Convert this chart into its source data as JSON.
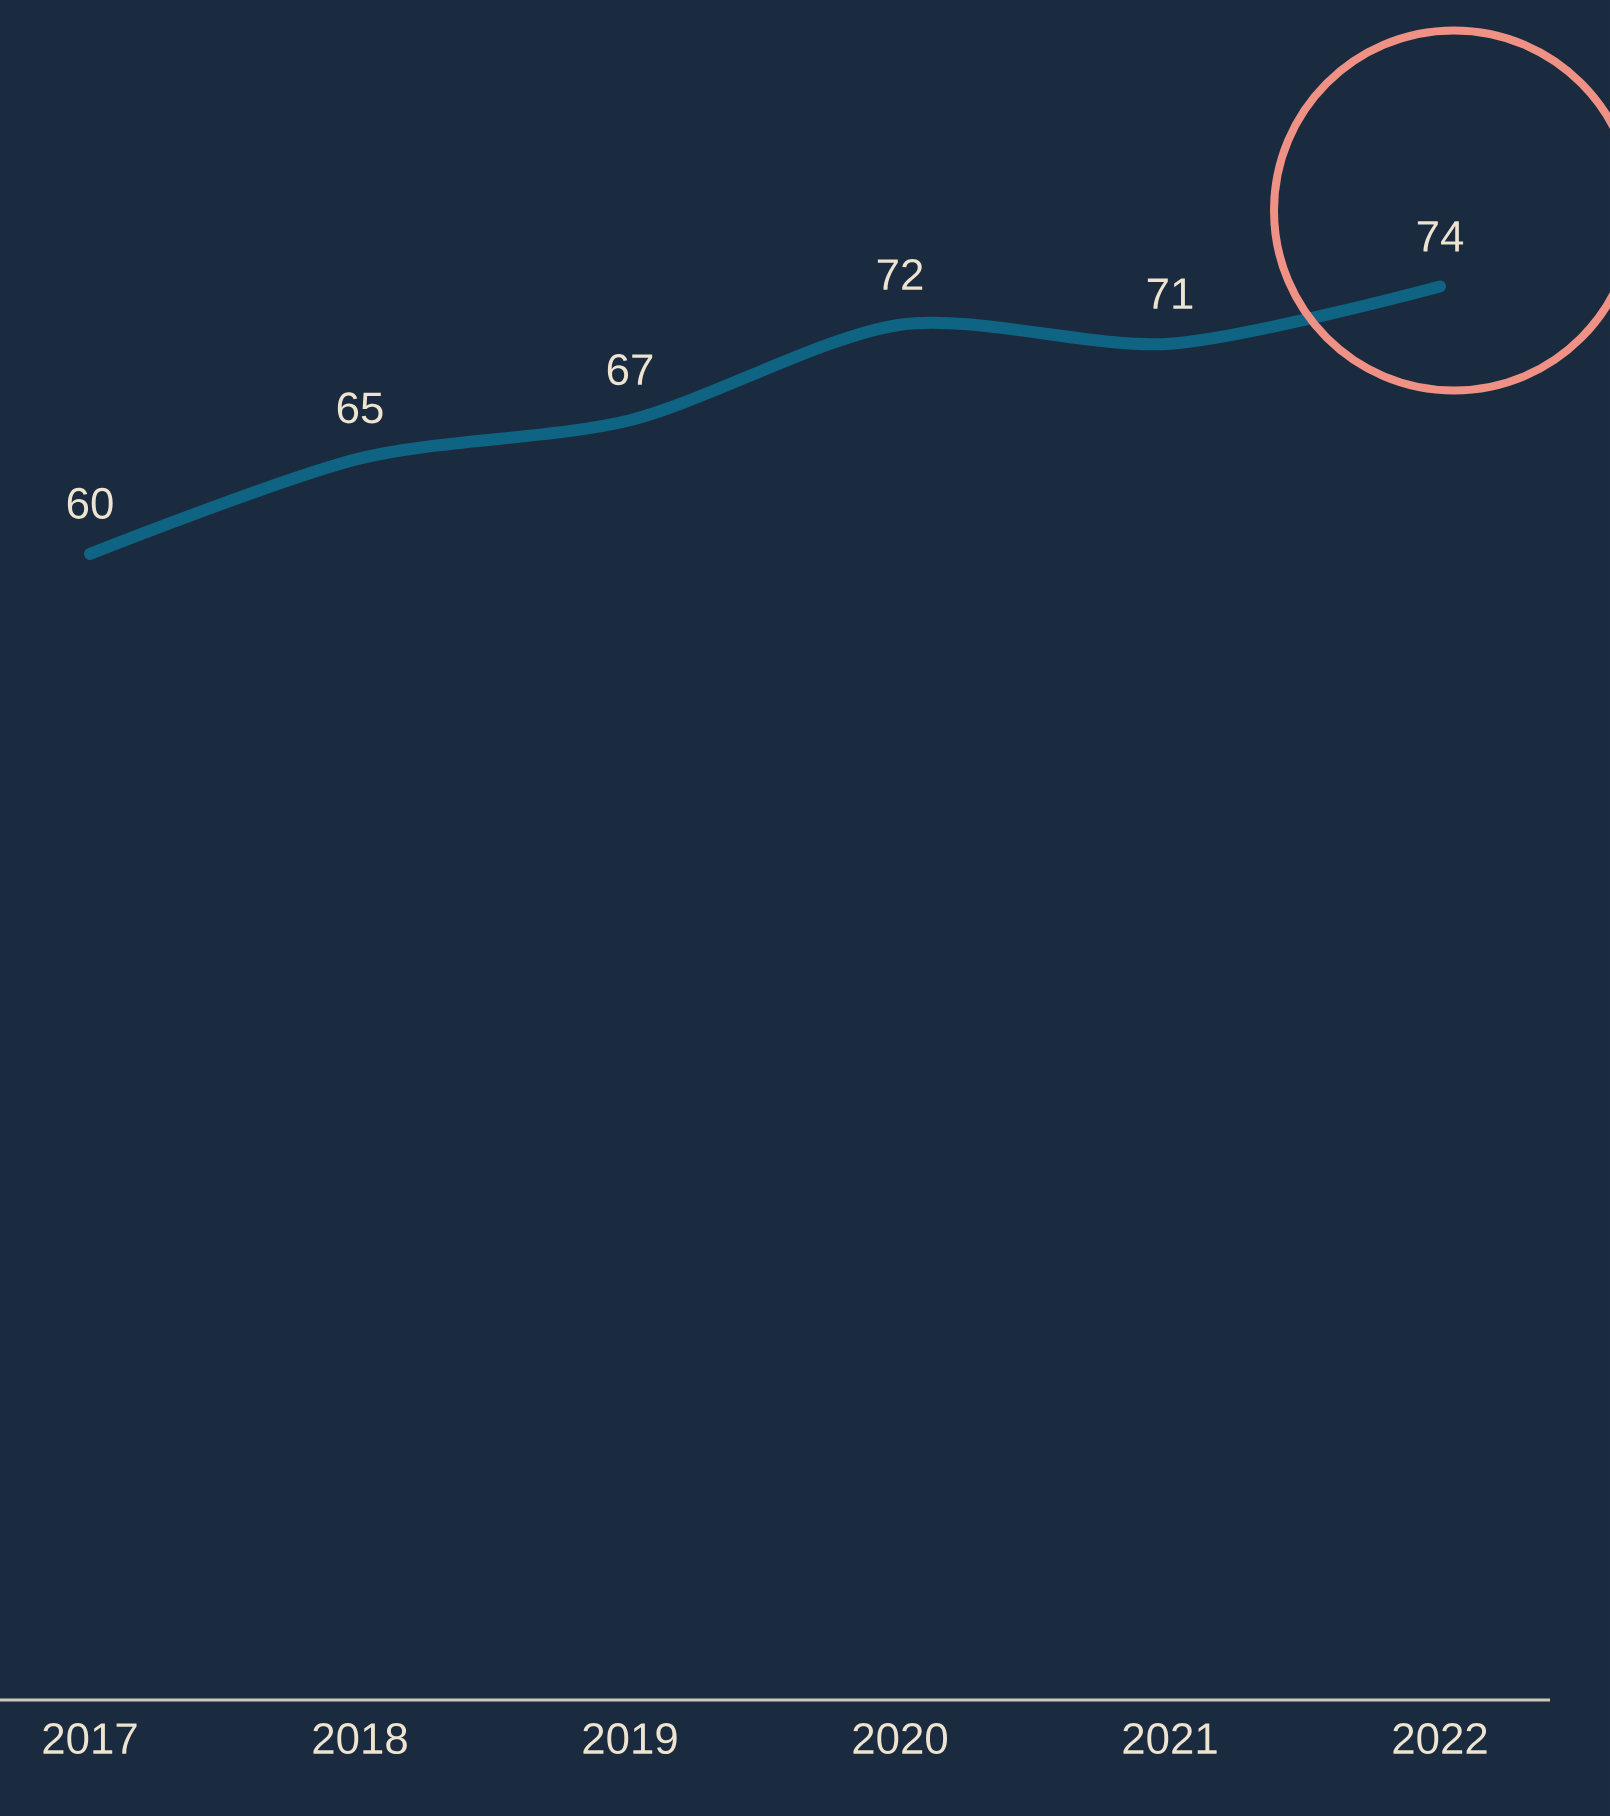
{
  "chart_data": {
    "type": "line",
    "categories": [
      "2017",
      "2018",
      "2019",
      "2020",
      "2021",
      "2022"
    ],
    "values": [
      60,
      65,
      67,
      72,
      71,
      74
    ],
    "color": "#0e6482",
    "ylim": [
      0,
      89
    ],
    "data_labels": true,
    "tick_labels": "x"
  }
}
